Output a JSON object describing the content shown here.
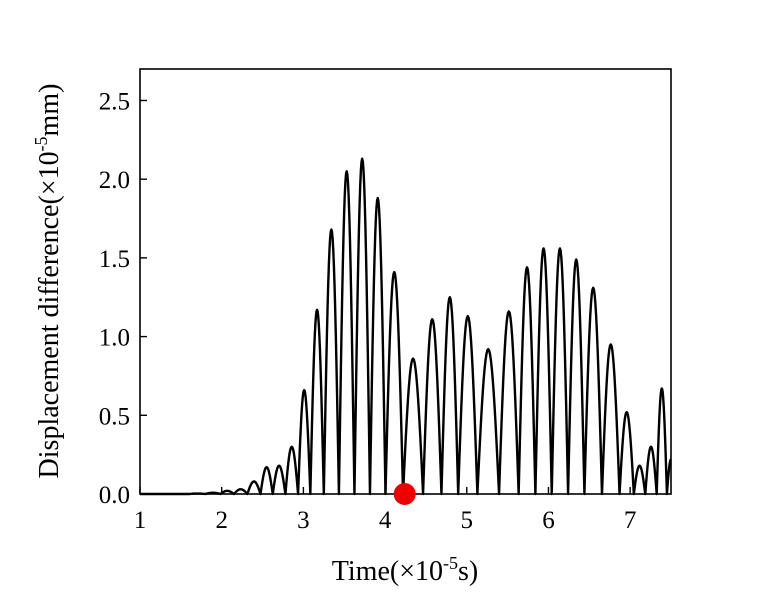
{
  "chart_data": {
    "type": "line",
    "title": "",
    "xlabel": {
      "prefix": "Time(×10",
      "exponent": "-5",
      "suffix": "s)"
    },
    "ylabel": {
      "prefix": "Displacement difference(×10",
      "exponent": "-5",
      "suffix": "mm)"
    },
    "xlim": [
      1,
      7.5
    ],
    "ylim": [
      0,
      2.7
    ],
    "x_ticks": [
      1,
      2,
      3,
      4,
      5,
      6,
      7
    ],
    "x_tick_labels": [
      "1",
      "2",
      "3",
      "4",
      "5",
      "6",
      "7"
    ],
    "y_ticks": [
      0,
      0.5,
      1.0,
      1.5,
      2.0,
      2.5
    ],
    "y_tick_labels": [
      "0.0",
      "0.5",
      "1.0",
      "1.5",
      "2.0",
      "2.5"
    ],
    "grid": false,
    "legend": "none",
    "line_color": "#000000",
    "marker": {
      "x": 4.24,
      "y": 0.0,
      "color": "#ee0000"
    },
    "series": [
      {
        "peaks": [
          {
            "x": 1.7,
            "y": 0.003
          },
          {
            "x": 1.9,
            "y": 0.008
          },
          {
            "x": 2.07,
            "y": 0.02
          },
          {
            "x": 2.23,
            "y": 0.03
          },
          {
            "x": 2.4,
            "y": 0.08
          },
          {
            "x": 2.55,
            "y": 0.17
          },
          {
            "x": 2.7,
            "y": 0.18
          },
          {
            "x": 2.86,
            "y": 0.3
          },
          {
            "x": 3.01,
            "y": 0.66
          },
          {
            "x": 3.16,
            "y": 1.17
          },
          {
            "x": 3.34,
            "y": 1.68
          },
          {
            "x": 3.53,
            "y": 2.05
          },
          {
            "x": 3.72,
            "y": 2.13
          },
          {
            "x": 3.91,
            "y": 1.88
          },
          {
            "x": 4.1,
            "y": 1.41
          },
          {
            "x": 4.34,
            "y": 0.86
          },
          {
            "x": 4.59,
            "y": 1.11
          },
          {
            "x": 4.79,
            "y": 1.25
          },
          {
            "x": 5.0,
            "y": 1.13
          },
          {
            "x": 5.26,
            "y": 0.92
          },
          {
            "x": 5.53,
            "y": 1.16
          },
          {
            "x": 5.74,
            "y": 1.44
          },
          {
            "x": 5.94,
            "y": 1.56
          },
          {
            "x": 6.14,
            "y": 1.56
          },
          {
            "x": 6.34,
            "y": 1.49
          },
          {
            "x": 6.54,
            "y": 1.31
          },
          {
            "x": 6.77,
            "y": 0.95
          },
          {
            "x": 6.97,
            "y": 0.52
          },
          {
            "x": 7.12,
            "y": 0.18
          },
          {
            "x": 7.25,
            "y": 0.3
          },
          {
            "x": 7.4,
            "y": 0.67
          },
          {
            "x": 7.5,
            "y": 0.22
          }
        ]
      }
    ]
  }
}
